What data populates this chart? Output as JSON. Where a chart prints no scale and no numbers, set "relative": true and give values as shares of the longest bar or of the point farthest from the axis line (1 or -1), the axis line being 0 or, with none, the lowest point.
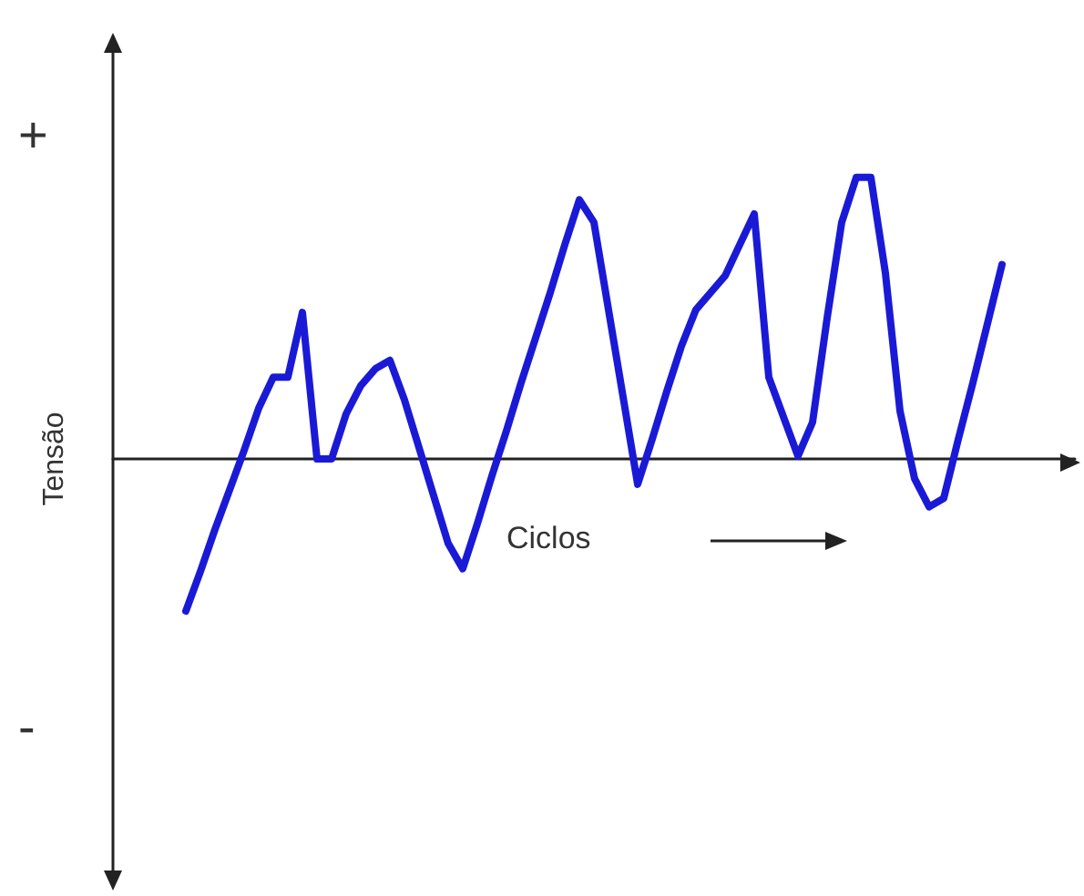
{
  "chart_data": {
    "type": "line",
    "relative": true,
    "ylabel": "Tensão",
    "xlabel": "Ciclos",
    "annotations": [
      "+",
      "-"
    ],
    "color": "#1a1ad6",
    "marker": "none",
    "categories": [
      null,
      null,
      null,
      null,
      null,
      null,
      null,
      null,
      null,
      null,
      null,
      null,
      null,
      null,
      null,
      null,
      null,
      null,
      null,
      null,
      null,
      null,
      null,
      null,
      null,
      null,
      null,
      null,
      null,
      null,
      null,
      null,
      null,
      null,
      null,
      null,
      null,
      null,
      null,
      null,
      null,
      null,
      null,
      null,
      null,
      null,
      null,
      null,
      null,
      null,
      null,
      null,
      null,
      null,
      null,
      null,
      null,
      null,
      null,
      null,
      null,
      null,
      null,
      null,
      null,
      null,
      null
    ],
    "values": [
      null,
      null,
      null,
      null,
      null,
      -0.54,
      -0.4,
      -0.25,
      -0.11,
      0.03,
      0.18,
      0.29,
      0.29,
      0.52,
      0,
      0,
      0.16,
      0.26,
      0.32,
      0.35,
      0.21,
      0.04,
      -0.13,
      -0.3,
      -0.39,
      -0.23,
      -0.06,
      0.1,
      0.27,
      0.43,
      0.59,
      0.76,
      0.92,
      0.84,
      0.53,
      0.22,
      -0.09,
      0.07,
      0.24,
      0.4,
      0.53,
      0.59,
      0.65,
      0.76,
      0.87,
      0.29,
      0.15,
      0.01,
      0.13,
      0.5,
      0.84,
      1,
      1,
      0.66,
      0.17,
      -0.07,
      -0.17,
      -0.14,
      0.07,
      0.27,
      0.48,
      0.69,
      null,
      null,
      null,
      null,
      null
    ]
  }
}
